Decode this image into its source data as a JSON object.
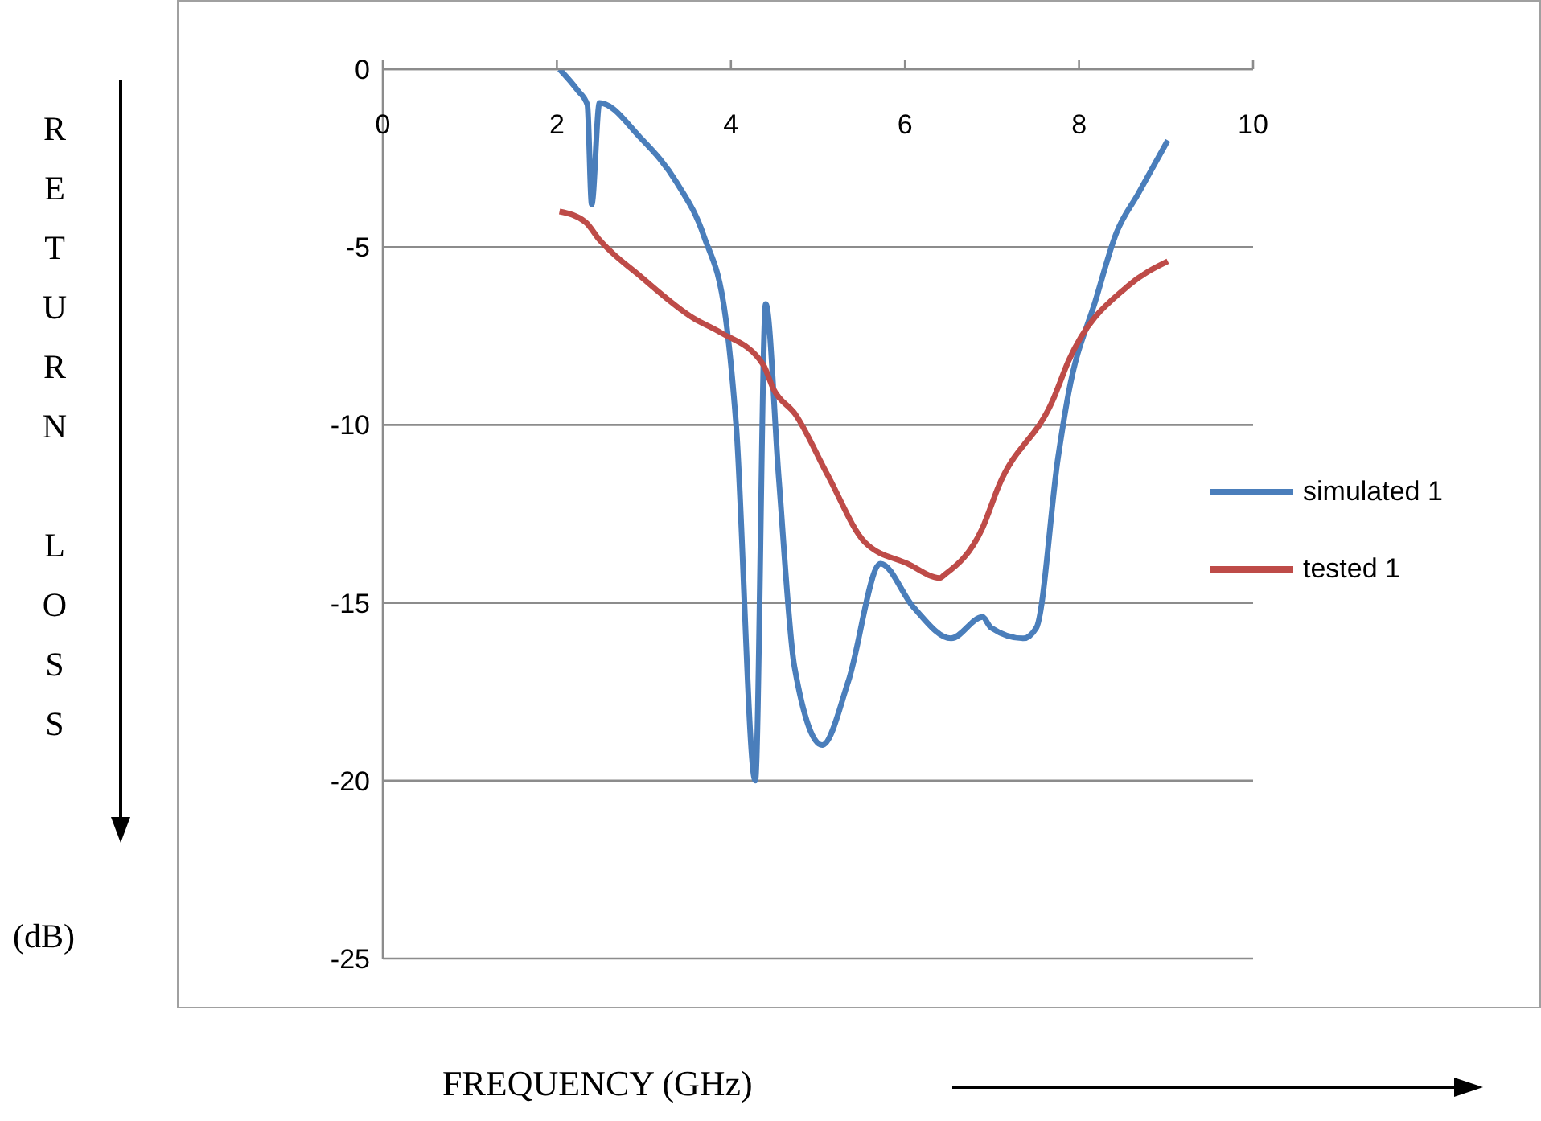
{
  "chart_data": {
    "type": "line",
    "xlabel": "FREQUENCY (GHz)",
    "ylabel": "RETURN LOSS (dB)",
    "xlim": [
      0,
      10
    ],
    "xticks": [
      0,
      2,
      4,
      6,
      8,
      10
    ],
    "ylim": [
      -25,
      0
    ],
    "yticks": [
      -25,
      -20,
      -15,
      -10,
      -5,
      0
    ],
    "grid": "y",
    "legend": "right",
    "series": [
      {
        "name": "simulated 1",
        "color": "#4a7ebb",
        "x": [
          2.03,
          2.24,
          2.35,
          2.4,
          2.49,
          2.95,
          3.38,
          3.69,
          3.94,
          4.06,
          4.28,
          4.4,
          4.55,
          4.73,
          5.05,
          5.35,
          5.72,
          6.09,
          6.53,
          6.89,
          6.99,
          7.36,
          7.51,
          7.76,
          7.88,
          8.19,
          8.43,
          8.68,
          9.02
        ],
        "values": [
          0,
          -0.6,
          -1.0,
          -3.8,
          -0.95,
          -1.9,
          -3.2,
          -4.7,
          -7.0,
          -10.0,
          -20.0,
          -6.6,
          -11.5,
          -16.8,
          -19.0,
          -17.2,
          -13.9,
          -15.1,
          -16.0,
          -15.4,
          -15.7,
          -16.0,
          -15.7,
          -10.9,
          -9.1,
          -6.5,
          -4.6,
          -3.5,
          -2.0
        ]
      },
      {
        "name": "tested 1",
        "color": "#be4b48",
        "x": [
          2.03,
          2.33,
          2.49,
          2.95,
          3.57,
          3.88,
          4.37,
          4.49,
          4.74,
          5.11,
          5.54,
          6.03,
          6.4,
          6.46,
          6.89,
          7.08,
          7.7,
          7.88,
          8.56,
          9.02
        ],
        "values": [
          -4.0,
          -4.3,
          -4.8,
          -5.8,
          -7.0,
          -7.4,
          -8.3,
          -9.0,
          -9.7,
          -11.4,
          -13.3,
          -13.9,
          -14.3,
          -14.2,
          -12.9,
          -11.7,
          -9.3,
          -8.2,
          -6.1,
          -5.4
        ]
      }
    ]
  }
}
